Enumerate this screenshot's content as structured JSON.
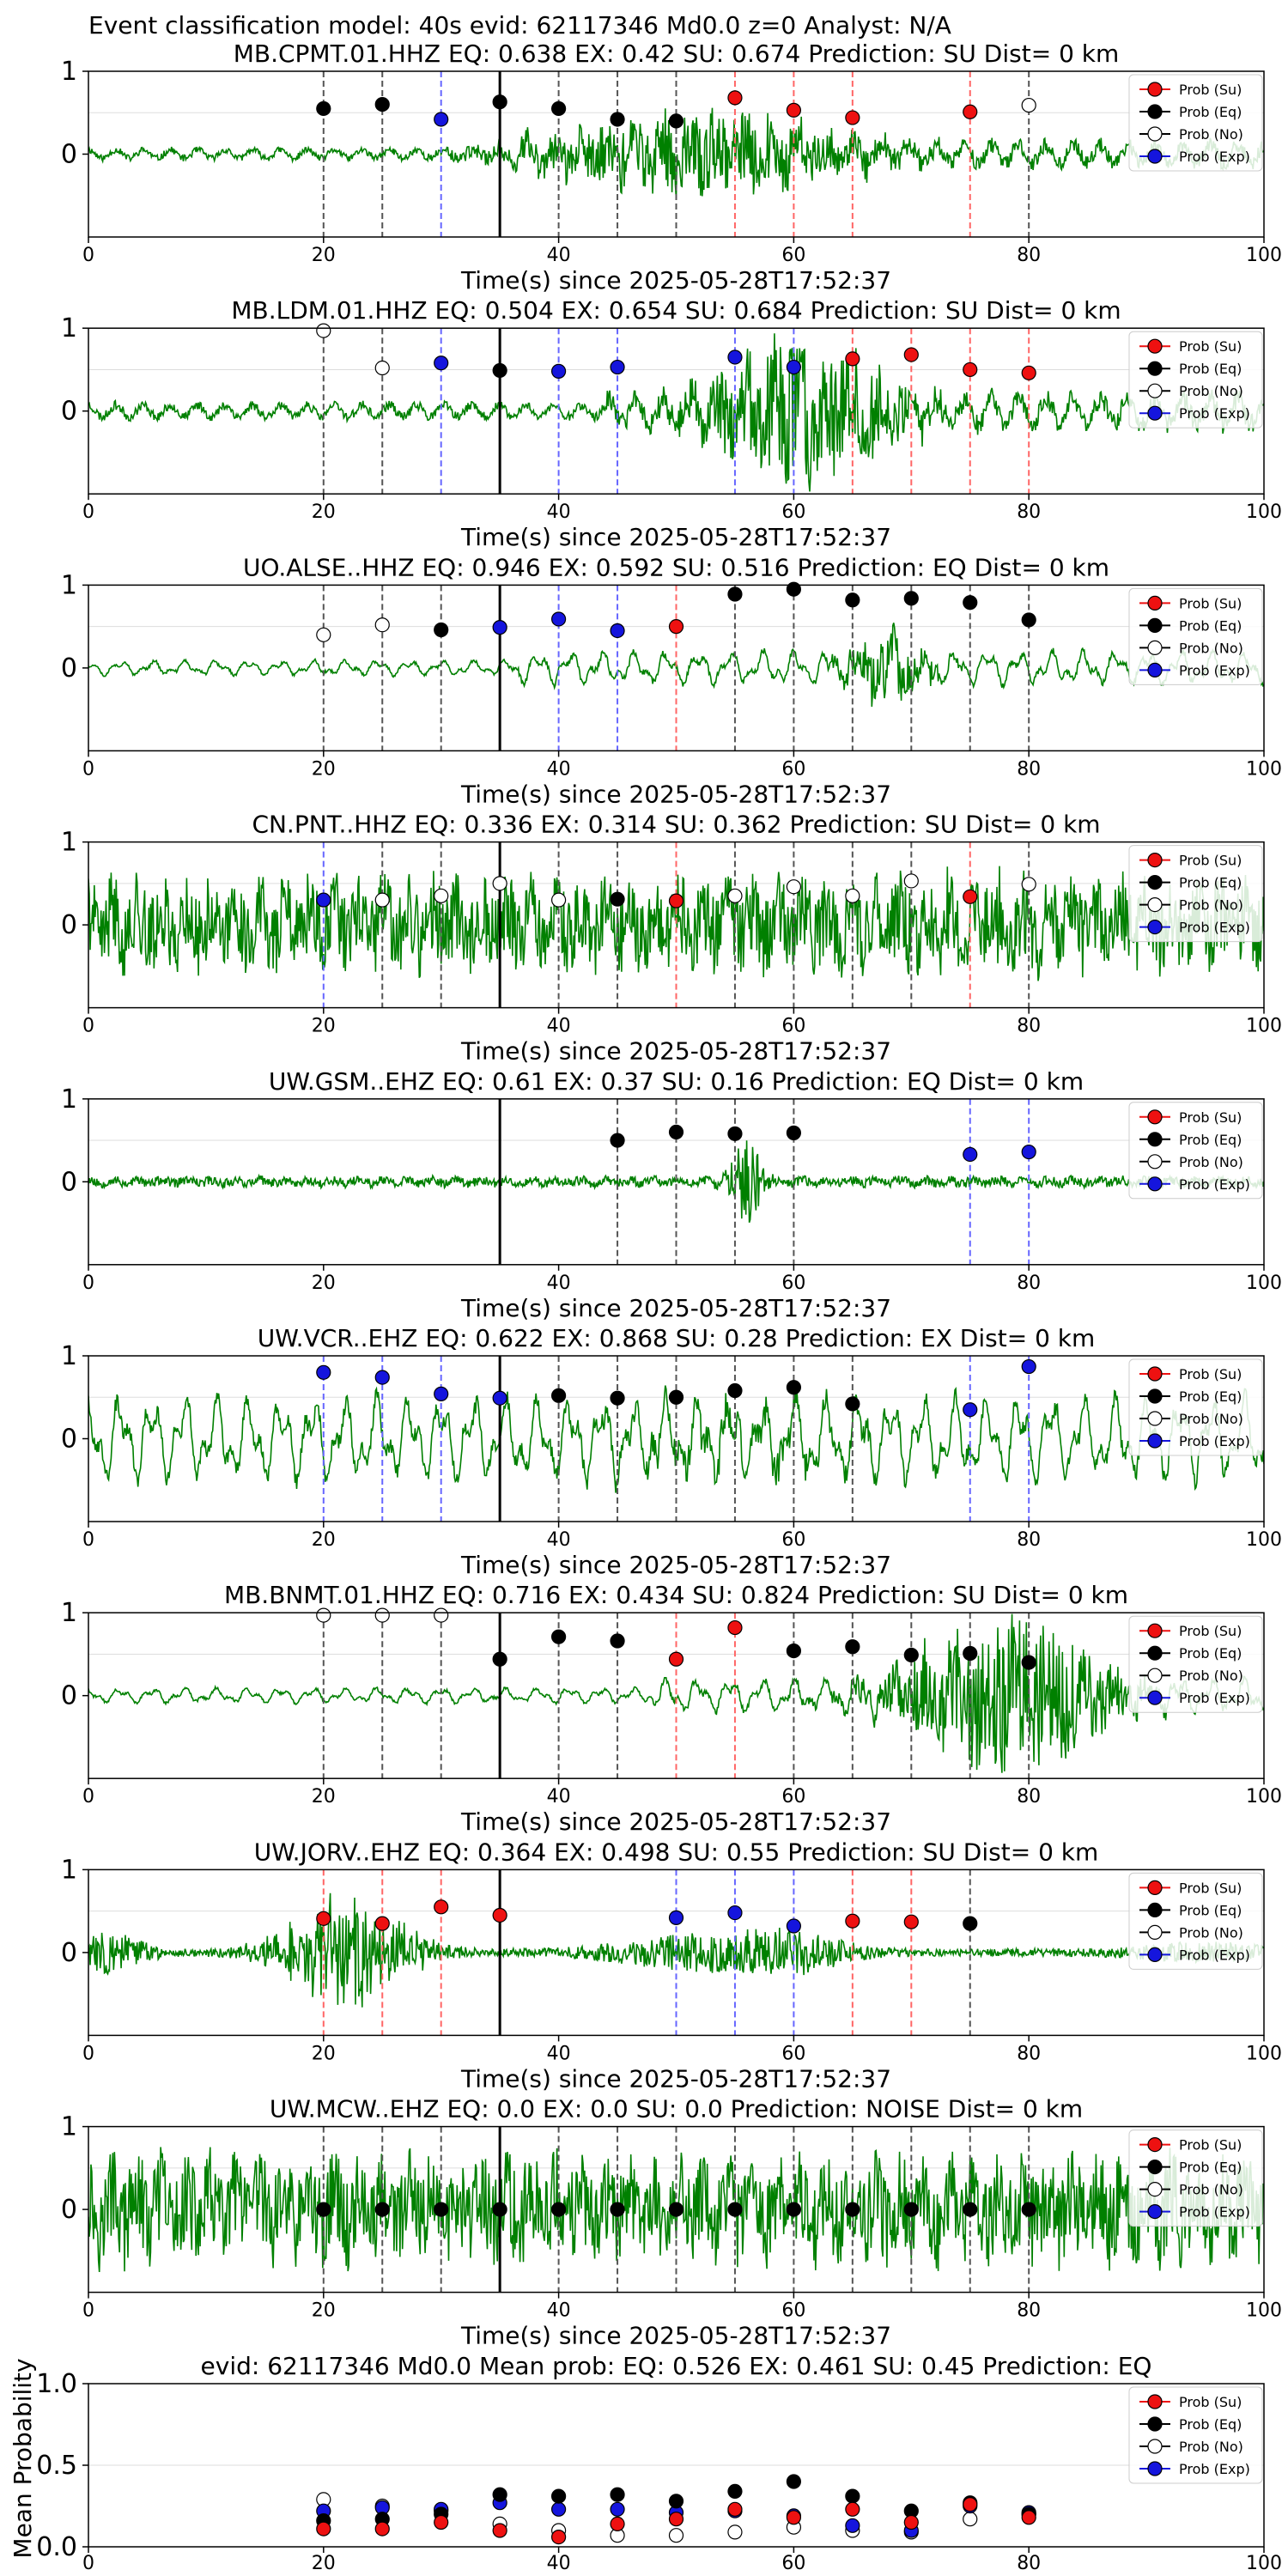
{
  "figure_title": "Event classification model: 40s evid: 62117346 Md0.0 z=0 Analyst: N/A",
  "chart_data": {
    "type": "scatter",
    "legend_position": "top-right",
    "legend_labels": [
      "Prob (Su)",
      "Prob (Eq)",
      "Prob (No)",
      "Prob (Exp)"
    ],
    "colors": {
      "su": "#ee1111",
      "eq": "#000000",
      "no": "#ffffff",
      "exp": "#1515dd",
      "su_line": "#ff6666",
      "eq_line": "#555555",
      "exp_line": "#6666ff",
      "waveform": "#008000",
      "axis": "#000000",
      "grid": "#dddddd"
    },
    "xlim": [
      0,
      100
    ],
    "xticks": [
      0,
      20,
      40,
      60,
      80,
      100
    ],
    "xlabel": "Time(s) since 2025-05-28T17:52:37",
    "arrival_time": 35,
    "panels": [
      {
        "title": "MB.CPMT.01.HHZ   EQ: 0.638   EX: 0.42   SU: 0.674    Prediction: SU    Dist= 0 km",
        "ylim": [
          -1,
          1
        ],
        "yticks": [
          0,
          1
        ],
        "waveform": {
          "amp": 0.1,
          "style": "mixed",
          "onset": 36,
          "burst_amp": 0.45,
          "burst_center": 52,
          "burst_width": 14,
          "seed": 11
        },
        "points": [
          {
            "t": 20,
            "p": 0.55,
            "cls": "eq"
          },
          {
            "t": 25,
            "p": 0.6,
            "cls": "eq"
          },
          {
            "t": 30,
            "p": 0.42,
            "cls": "exp"
          },
          {
            "t": 35,
            "p": 0.63,
            "cls": "eq"
          },
          {
            "t": 40,
            "p": 0.55,
            "cls": "eq"
          },
          {
            "t": 45,
            "p": 0.42,
            "cls": "eq"
          },
          {
            "t": 50,
            "p": 0.4,
            "cls": "eq"
          },
          {
            "t": 55,
            "p": 0.68,
            "cls": "su"
          },
          {
            "t": 60,
            "p": 0.53,
            "cls": "su"
          },
          {
            "t": 65,
            "p": 0.44,
            "cls": "su"
          },
          {
            "t": 75,
            "p": 0.51,
            "cls": "su"
          },
          {
            "t": 80,
            "p": 0.59,
            "cls": "no"
          }
        ]
      },
      {
        "title": "MB.LDM.01.HHZ   EQ: 0.504   EX: 0.654   SU: 0.684    Prediction: SU    Dist= 0 km",
        "ylim": [
          -1,
          1
        ],
        "yticks": [
          0,
          1
        ],
        "waveform": {
          "amp": 0.14,
          "style": "mixed",
          "onset": 44,
          "burst_amp": 0.85,
          "burst_center": 61,
          "burst_width": 8,
          "seed": 23
        },
        "points": [
          {
            "t": 20,
            "p": 0.97,
            "cls": "no"
          },
          {
            "t": 25,
            "p": 0.52,
            "cls": "no"
          },
          {
            "t": 30,
            "p": 0.58,
            "cls": "exp"
          },
          {
            "t": 35,
            "p": 0.49,
            "cls": "eq"
          },
          {
            "t": 40,
            "p": 0.48,
            "cls": "exp"
          },
          {
            "t": 45,
            "p": 0.53,
            "cls": "exp"
          },
          {
            "t": 55,
            "p": 0.65,
            "cls": "exp"
          },
          {
            "t": 60,
            "p": 0.53,
            "cls": "exp"
          },
          {
            "t": 65,
            "p": 0.63,
            "cls": "su"
          },
          {
            "t": 70,
            "p": 0.68,
            "cls": "su"
          },
          {
            "t": 75,
            "p": 0.5,
            "cls": "su"
          },
          {
            "t": 80,
            "p": 0.46,
            "cls": "su"
          }
        ]
      },
      {
        "title": "UO.ALSE..HHZ   EQ: 0.946   EX: 0.592   SU: 0.516    Prediction: EQ    Dist= 0 km",
        "ylim": [
          -1,
          1
        ],
        "yticks": [
          0,
          1
        ],
        "waveform": {
          "amp": 0.1,
          "style": "smooth",
          "onset": 36,
          "burst_amp": 0.35,
          "burst_center": 68,
          "burst_width": 4,
          "seed": 37
        },
        "points": [
          {
            "t": 20,
            "p": 0.4,
            "cls": "no"
          },
          {
            "t": 25,
            "p": 0.52,
            "cls": "no"
          },
          {
            "t": 30,
            "p": 0.46,
            "cls": "eq"
          },
          {
            "t": 35,
            "p": 0.49,
            "cls": "exp"
          },
          {
            "t": 40,
            "p": 0.59,
            "cls": "exp"
          },
          {
            "t": 45,
            "p": 0.45,
            "cls": "exp"
          },
          {
            "t": 50,
            "p": 0.5,
            "cls": "su"
          },
          {
            "t": 55,
            "p": 0.89,
            "cls": "eq"
          },
          {
            "t": 60,
            "p": 0.95,
            "cls": "eq"
          },
          {
            "t": 65,
            "p": 0.82,
            "cls": "eq"
          },
          {
            "t": 70,
            "p": 0.84,
            "cls": "eq"
          },
          {
            "t": 75,
            "p": 0.79,
            "cls": "eq"
          },
          {
            "t": 80,
            "p": 0.58,
            "cls": "eq"
          }
        ]
      },
      {
        "title": "CN.PNT..HHZ   EQ: 0.336   EX: 0.314   SU: 0.362    Prediction: SU    Dist= 0 km",
        "ylim": [
          -1,
          1
        ],
        "yticks": [
          0,
          1
        ],
        "waveform": {
          "amp": 0.6,
          "style": "noisy",
          "onset": 0,
          "burst_amp": 0.2,
          "burst_center": 75,
          "burst_width": 10,
          "seed": 41
        },
        "points": [
          {
            "t": 20,
            "p": 0.3,
            "cls": "exp"
          },
          {
            "t": 25,
            "p": 0.3,
            "cls": "no"
          },
          {
            "t": 30,
            "p": 0.35,
            "cls": "no"
          },
          {
            "t": 35,
            "p": 0.5,
            "cls": "no"
          },
          {
            "t": 40,
            "p": 0.3,
            "cls": "no"
          },
          {
            "t": 45,
            "p": 0.31,
            "cls": "eq"
          },
          {
            "t": 50,
            "p": 0.29,
            "cls": "su"
          },
          {
            "t": 55,
            "p": 0.35,
            "cls": "no"
          },
          {
            "t": 60,
            "p": 0.46,
            "cls": "no"
          },
          {
            "t": 65,
            "p": 0.35,
            "cls": "no"
          },
          {
            "t": 70,
            "p": 0.53,
            "cls": "no"
          },
          {
            "t": 75,
            "p": 0.34,
            "cls": "su"
          },
          {
            "t": 80,
            "p": 0.49,
            "cls": "no"
          }
        ]
      },
      {
        "title": "UW.GSM..EHZ   EQ: 0.61   EX: 0.37   SU: 0.16    Prediction: EQ    Dist= 0 km",
        "ylim": [
          -1,
          1
        ],
        "yticks": [
          0,
          1
        ],
        "waveform": {
          "amp": 0.07,
          "style": "noisy",
          "onset": 0,
          "burst_amp": 0.5,
          "burst_center": 56,
          "burst_width": 1.5,
          "seed": 53
        },
        "points": [
          {
            "t": 45,
            "p": 0.5,
            "cls": "eq"
          },
          {
            "t": 50,
            "p": 0.6,
            "cls": "eq"
          },
          {
            "t": 55,
            "p": 0.58,
            "cls": "eq"
          },
          {
            "t": 60,
            "p": 0.59,
            "cls": "eq"
          },
          {
            "t": 75,
            "p": 0.33,
            "cls": "exp"
          },
          {
            "t": 80,
            "p": 0.36,
            "cls": "exp"
          }
        ]
      },
      {
        "title": "UW.VCR..EHZ   EQ: 0.622   EX: 0.868   SU: 0.28    Prediction: EX    Dist= 0 km",
        "ylim": [
          -1,
          1
        ],
        "yticks": [
          0,
          1
        ],
        "waveform": {
          "amp": 0.55,
          "style": "smooth",
          "onset": 0,
          "burst_amp": 0.2,
          "burst_center": 55,
          "burst_width": 10,
          "seed": 67
        },
        "points": [
          {
            "t": 20,
            "p": 0.8,
            "cls": "exp"
          },
          {
            "t": 25,
            "p": 0.74,
            "cls": "exp"
          },
          {
            "t": 30,
            "p": 0.54,
            "cls": "exp"
          },
          {
            "t": 35,
            "p": 0.49,
            "cls": "exp"
          },
          {
            "t": 40,
            "p": 0.52,
            "cls": "eq"
          },
          {
            "t": 45,
            "p": 0.49,
            "cls": "eq"
          },
          {
            "t": 50,
            "p": 0.5,
            "cls": "eq"
          },
          {
            "t": 55,
            "p": 0.58,
            "cls": "eq"
          },
          {
            "t": 60,
            "p": 0.62,
            "cls": "eq"
          },
          {
            "t": 65,
            "p": 0.42,
            "cls": "eq"
          },
          {
            "t": 75,
            "p": 0.35,
            "cls": "exp"
          },
          {
            "t": 80,
            "p": 0.87,
            "cls": "exp"
          }
        ]
      },
      {
        "title": "MB.BNMT.01.HHZ   EQ: 0.716   EX: 0.434   SU: 0.824    Prediction: SU    Dist= 0 km",
        "ylim": [
          -1,
          1
        ],
        "yticks": [
          0,
          1
        ],
        "waveform": {
          "amp": 0.1,
          "style": "smooth",
          "onset": 48,
          "burst_amp": 0.9,
          "burst_center": 78,
          "burst_width": 9,
          "seed": 79
        },
        "points": [
          {
            "t": 20,
            "p": 0.97,
            "cls": "no"
          },
          {
            "t": 25,
            "p": 0.97,
            "cls": "no"
          },
          {
            "t": 30,
            "p": 0.97,
            "cls": "no"
          },
          {
            "t": 35,
            "p": 0.44,
            "cls": "eq"
          },
          {
            "t": 40,
            "p": 0.71,
            "cls": "eq"
          },
          {
            "t": 45,
            "p": 0.66,
            "cls": "eq"
          },
          {
            "t": 50,
            "p": 0.44,
            "cls": "su"
          },
          {
            "t": 55,
            "p": 0.82,
            "cls": "su"
          },
          {
            "t": 60,
            "p": 0.54,
            "cls": "eq"
          },
          {
            "t": 65,
            "p": 0.59,
            "cls": "eq"
          },
          {
            "t": 70,
            "p": 0.49,
            "cls": "eq"
          },
          {
            "t": 75,
            "p": 0.51,
            "cls": "eq"
          },
          {
            "t": 80,
            "p": 0.4,
            "cls": "eq"
          }
        ]
      },
      {
        "title": "UW.JORV..EHZ   EQ: 0.364   EX: 0.498   SU: 0.55    Prediction: SU    Dist= 0 km",
        "ylim": [
          -1,
          1
        ],
        "yticks": [
          0,
          1
        ],
        "waveform": {
          "amp": 0.05,
          "style": "bursts",
          "onset": 0,
          "burst_amp": 0.5,
          "burst_center": 22,
          "burst_width": 6,
          "seed": 83
        },
        "points": [
          {
            "t": 20,
            "p": 0.41,
            "cls": "su"
          },
          {
            "t": 25,
            "p": 0.35,
            "cls": "su"
          },
          {
            "t": 30,
            "p": 0.55,
            "cls": "su"
          },
          {
            "t": 35,
            "p": 0.45,
            "cls": "su"
          },
          {
            "t": 50,
            "p": 0.42,
            "cls": "exp"
          },
          {
            "t": 55,
            "p": 0.48,
            "cls": "exp"
          },
          {
            "t": 60,
            "p": 0.32,
            "cls": "exp"
          },
          {
            "t": 65,
            "p": 0.38,
            "cls": "su"
          },
          {
            "t": 70,
            "p": 0.37,
            "cls": "su"
          },
          {
            "t": 75,
            "p": 0.35,
            "cls": "eq"
          }
        ]
      },
      {
        "title": "UW.MCW..EHZ   EQ: 0.0   EX: 0.0   SU: 0.0    Prediction: NOISE    Dist= 0 km",
        "ylim": [
          -1,
          1
        ],
        "yticks": [
          0,
          1
        ],
        "waveform": {
          "amp": 0.7,
          "style": "noisy",
          "onset": 0,
          "burst_amp": 0.0,
          "burst_center": 50,
          "burst_width": 10,
          "seed": 97
        },
        "points": [
          {
            "t": 20,
            "p": 0.0,
            "cls": "eq"
          },
          {
            "t": 25,
            "p": 0.0,
            "cls": "eq"
          },
          {
            "t": 30,
            "p": 0.0,
            "cls": "eq"
          },
          {
            "t": 35,
            "p": 0.0,
            "cls": "eq"
          },
          {
            "t": 40,
            "p": 0.0,
            "cls": "eq"
          },
          {
            "t": 45,
            "p": 0.0,
            "cls": "eq"
          },
          {
            "t": 50,
            "p": 0.0,
            "cls": "eq"
          },
          {
            "t": 55,
            "p": 0.0,
            "cls": "eq"
          },
          {
            "t": 60,
            "p": 0.0,
            "cls": "eq"
          },
          {
            "t": 65,
            "p": 0.0,
            "cls": "eq"
          },
          {
            "t": 70,
            "p": 0.0,
            "cls": "eq"
          },
          {
            "t": 75,
            "p": 0.0,
            "cls": "eq"
          },
          {
            "t": 80,
            "p": 0.0,
            "cls": "eq"
          }
        ]
      }
    ],
    "mean_panel": {
      "title": "evid: 62117346  Md0.0   Mean prob:   EQ: 0.526  EX: 0.461  SU: 0.45   Prediction: EQ",
      "ylabel": "Mean Probability",
      "ylim": [
        0,
        1
      ],
      "yticks": [
        "0.0",
        "0.5",
        "1.0"
      ],
      "x": [
        20,
        25,
        30,
        35,
        40,
        45,
        50,
        55,
        60,
        65,
        70,
        75,
        80
      ],
      "series": [
        {
          "cls": "no",
          "values": [
            0.29,
            0.25,
            0.22,
            0.14,
            0.1,
            0.07,
            0.07,
            0.09,
            0.12,
            0.1,
            0.09,
            0.17,
            0.2
          ]
        },
        {
          "cls": "exp",
          "values": [
            0.22,
            0.24,
            0.23,
            0.27,
            0.23,
            0.23,
            0.21,
            0.22,
            0.19,
            0.13,
            0.1,
            0.25,
            0.21
          ]
        },
        {
          "cls": "eq",
          "values": [
            0.16,
            0.17,
            0.2,
            0.32,
            0.31,
            0.32,
            0.28,
            0.34,
            0.4,
            0.31,
            0.22,
            0.27,
            0.2
          ]
        },
        {
          "cls": "su",
          "values": [
            0.11,
            0.11,
            0.15,
            0.1,
            0.06,
            0.14,
            0.17,
            0.23,
            0.18,
            0.23,
            0.15,
            0.26,
            0.18
          ]
        }
      ]
    }
  }
}
